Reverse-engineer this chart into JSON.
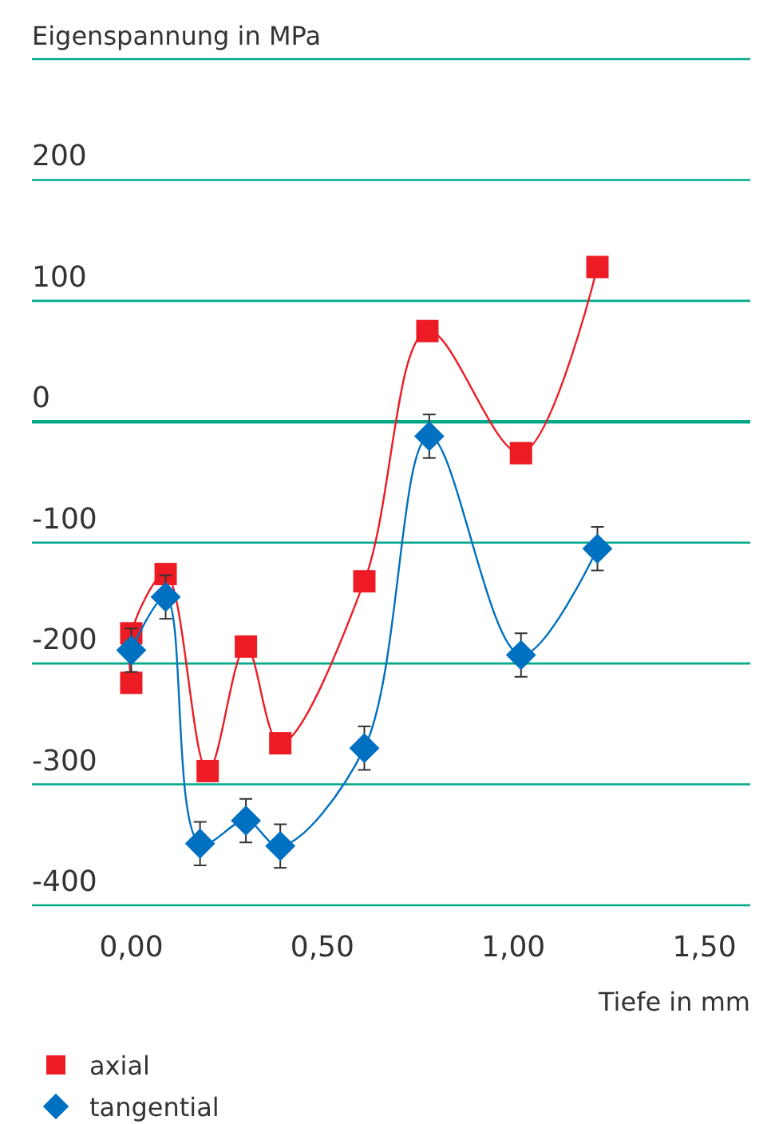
{
  "chart_data": {
    "type": "line",
    "ylabel": "Eigenspannung in MPa",
    "xlabel": "Tiefe in mm",
    "xlim": [
      -0.26,
      1.62
    ],
    "xticks": [
      {
        "value": 0,
        "label": "0,00"
      },
      {
        "value": 0.5,
        "label": "0,50"
      },
      {
        "value": 1,
        "label": "1,00"
      },
      {
        "value": 1.5,
        "label": "1,50"
      }
    ],
    "ylim": [
      -400,
      300
    ],
    "yticks": [
      -400,
      -300,
      -200,
      -100,
      0,
      100,
      200,
      {
        "value": 300,
        "label": null
      }
    ],
    "grid": "y",
    "legend": "bottom left",
    "ref_lines": [
      {
        "axis": "y",
        "value": 0,
        "color": "#00a88a"
      }
    ],
    "series": [
      {
        "name": "axial",
        "color": "#ed1c24",
        "marker": "square",
        "x": [
          0,
          0,
          0.09,
          0.2,
          0.3,
          0.39,
          0.61,
          0.775,
          1.02,
          1.22
        ],
        "values": [
          -216,
          -175,
          -126,
          -289,
          -186,
          -266,
          -132,
          75,
          -26,
          128
        ]
      },
      {
        "name": "tangential",
        "color": "#0070c0",
        "marker": "diamond",
        "x": [
          0,
          0.09,
          0.18,
          0.3,
          0.39,
          0.61,
          0.78,
          1.02,
          1.22
        ],
        "values": [
          -189,
          -145,
          -349,
          -330,
          -351,
          -270,
          -12,
          -193,
          -105
        ],
        "errors": [
          18,
          18,
          18,
          18,
          18,
          18,
          18,
          18,
          18
        ]
      }
    ]
  }
}
